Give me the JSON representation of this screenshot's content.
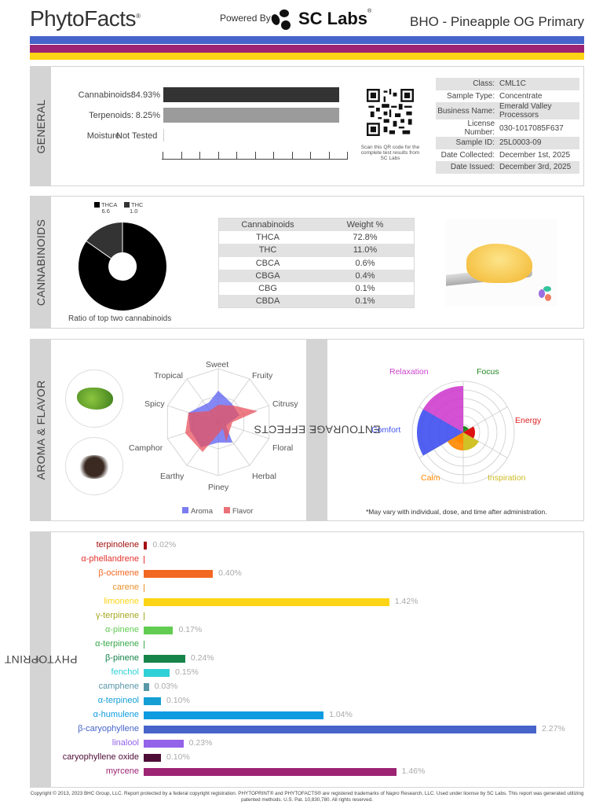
{
  "header": {
    "logo": "PhytoFacts",
    "powered_by": "Powered By",
    "partner": "SC Labs",
    "product_title": "BHO - Pineapple OG Primary"
  },
  "colors": {
    "stripe_blue": "#4664c9",
    "stripe_purple": "#9c2473",
    "stripe_yellow": "#fdd416",
    "cannabinoid_bar": "#333333",
    "terpenoid_bar": "#9b9b9b"
  },
  "general": {
    "section_label": "GENERAL",
    "rows": [
      {
        "label": "Cannabinoids:",
        "value": "84.93%"
      },
      {
        "label": "Terpenoids:",
        "value": "8.25%"
      },
      {
        "label": "Moisture:",
        "value": "Not Tested"
      }
    ],
    "qr_caption": "Scan this QR code for the complete test results from SC Labs",
    "info": [
      {
        "key": "Class:",
        "value": "CML1C"
      },
      {
        "key": "Sample Type:",
        "value": "Concentrate"
      },
      {
        "key": "Business Name:",
        "value": "Emerald Valley Processors"
      },
      {
        "key": "License Number:",
        "value": "030-1017085F637"
      },
      {
        "key": "Sample ID:",
        "value": "25L0003-09"
      },
      {
        "key": "Date Collected:",
        "value": "December 1st, 2025"
      },
      {
        "key": "Date Issued:",
        "value": "December 3rd, 2025"
      }
    ]
  },
  "cannabinoids": {
    "section_label": "CANNABINOIDS",
    "legend": [
      {
        "name": "THCA",
        "value": "6.6"
      },
      {
        "name": "THC",
        "value": "1.0"
      }
    ],
    "ratio_caption": "Ratio of top two cannabinoids",
    "table_headers": [
      "Cannabinoids",
      "Weight %"
    ],
    "table_rows": [
      [
        "THCA",
        "72.8%"
      ],
      [
        "THC",
        "11.0%"
      ],
      [
        "CBCA",
        "0.6%"
      ],
      [
        "CBGA",
        "0.4%"
      ],
      [
        "CBG",
        "0.1%"
      ],
      [
        "CBDA",
        "0.1%"
      ]
    ]
  },
  "aroma": {
    "section_label": "AROMA & FLAVOR",
    "axes": [
      "Sweet",
      "Fruity",
      "Citrusy",
      "Floral",
      "Herbal",
      "Piney",
      "Earthy",
      "Camphor",
      "Spicy",
      "Tropical"
    ],
    "legend": [
      "Aroma",
      "Flavor"
    ]
  },
  "entourage": {
    "section_label": "ENTOURAGE EFFECTS",
    "labels": [
      "Relaxation",
      "Focus",
      "Energy",
      "Inspiration",
      "Calm",
      "Comfort"
    ],
    "footnote": "*May vary with individual, dose, and time after administration."
  },
  "phytoprint": {
    "section_label": "PHYTOPRINT",
    "terpenes": [
      {
        "name": "terpinolene",
        "value": "0.02%",
        "color": "#a30f0f"
      },
      {
        "name": "α-phellandrene",
        "value": "",
        "color": "#e2322d"
      },
      {
        "name": "β-ocimene",
        "value": "0.40%",
        "color": "#f26722"
      },
      {
        "name": "carene",
        "value": "",
        "color": "#e8912c"
      },
      {
        "name": "limonene",
        "value": "1.42%",
        "color": "#fdd416"
      },
      {
        "name": "γ-terpinene",
        "value": "",
        "color": "#a5a820"
      },
      {
        "name": "α-pinene",
        "value": "0.17%",
        "color": "#62cc52"
      },
      {
        "name": "α-terpinene",
        "value": "",
        "color": "#38a84a"
      },
      {
        "name": "β-pinene",
        "value": "0.24%",
        "color": "#16844a"
      },
      {
        "name": "fenchol",
        "value": "0.15%",
        "color": "#2fd0d6"
      },
      {
        "name": "camphene",
        "value": "0.03%",
        "color": "#5896a8"
      },
      {
        "name": "α-terpineol",
        "value": "0.10%",
        "color": "#159ed4"
      },
      {
        "name": "α-humulene",
        "value": "1.04%",
        "color": "#0e9be0"
      },
      {
        "name": "β-caryophyllene",
        "value": "2.27%",
        "color": "#4664c9"
      },
      {
        "name": "linalool",
        "value": "0.23%",
        "color": "#9363ea"
      },
      {
        "name": "caryophyllene oxide",
        "value": "0.10%",
        "color": "#4e0d37"
      },
      {
        "name": "myrcene",
        "value": "1.46%",
        "color": "#9c2473"
      }
    ]
  },
  "footer": "Copyright © 2013, 2023 BHC Group, LLC. Report protected by a federal copyright registration. PHYTOPRINT® and PHYTOFACTS® are registered trademarks of Napro Research, LLC. Used under license by SC Labs. This report was generated utilizing patented methods. U.S. Pat. 10,830,780. All rights reserved."
}
